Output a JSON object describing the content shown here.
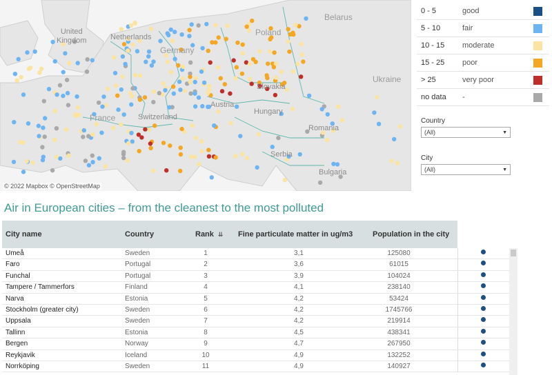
{
  "map": {
    "credit": "© 2022 Mapbox © OpenStreetMap",
    "labels": {
      "belarus": "Belarus",
      "uk": "United\nKingdom",
      "netherlands": "Netherlands",
      "poland": "Poland",
      "germany": "Germany",
      "slovakia": "Slovakia",
      "ukraine": "Ukraine",
      "austria": "Austria",
      "hungary": "Hungary",
      "france": "France",
      "switzerland": "Switzerland",
      "romania": "Romania",
      "serbia": "Serbia",
      "bulgaria": "Bulgaria"
    }
  },
  "legend": [
    {
      "range": "0 - 5",
      "label": "good",
      "color": "#1b4f86"
    },
    {
      "range": "5 - 10",
      "label": "fair",
      "color": "#6db5f2"
    },
    {
      "range": "10 - 15",
      "label": "moderate",
      "color": "#fbe3a2"
    },
    {
      "range": "15 - 25",
      "label": "poor",
      "color": "#f3a722"
    },
    {
      "range": "> 25",
      "label": "very poor",
      "color": "#bf2f2a"
    },
    {
      "range": "no data",
      "label": "-",
      "color": "#a9a9aa"
    }
  ],
  "filters": {
    "country": {
      "title": "Country",
      "value": "(All)"
    },
    "city": {
      "title": "City",
      "value": "(All)"
    }
  },
  "title": "Air in European cities – from the cleanest to the most polluted",
  "table": {
    "headers": {
      "city": "City name",
      "country": "Country",
      "rank": "Rank",
      "pm": "Fine particulate matter in ug/m3",
      "pop": "Population in the city"
    },
    "rows": [
      {
        "city": "Umeå",
        "country": "Sweden",
        "rank": "1",
        "pm": "3,1",
        "pop": "125080"
      },
      {
        "city": "Faro",
        "country": "Portugal",
        "rank": "2",
        "pm": "3,6",
        "pop": "61015"
      },
      {
        "city": "Funchal",
        "country": "Portugal",
        "rank": "3",
        "pm": "3,9",
        "pop": "104024"
      },
      {
        "city": "Tampere / Tammerfors",
        "country": "Finland",
        "rank": "4",
        "pm": "4,1",
        "pop": "238140"
      },
      {
        "city": "Narva",
        "country": "Estonia",
        "rank": "5",
        "pm": "4,2",
        "pop": "53424"
      },
      {
        "city": "Stockholm (greater city)",
        "country": "Sweden",
        "rank": "6",
        "pm": "4,2",
        "pop": "1745766"
      },
      {
        "city": "Uppsala",
        "country": "Sweden",
        "rank": "7",
        "pm": "4,2",
        "pop": "219914"
      },
      {
        "city": "Tallinn",
        "country": "Estonia",
        "rank": "8",
        "pm": "4,5",
        "pop": "438341"
      },
      {
        "city": "Bergen",
        "country": "Norway",
        "rank": "9",
        "pm": "4,7",
        "pop": "267950"
      },
      {
        "city": "Reykjavik",
        "country": "Iceland",
        "rank": "10",
        "pm": "4,9",
        "pop": "132252"
      },
      {
        "city": "Norrköping",
        "country": "Sweden",
        "rank": "11",
        "pm": "4,9",
        "pop": "140927"
      }
    ]
  }
}
